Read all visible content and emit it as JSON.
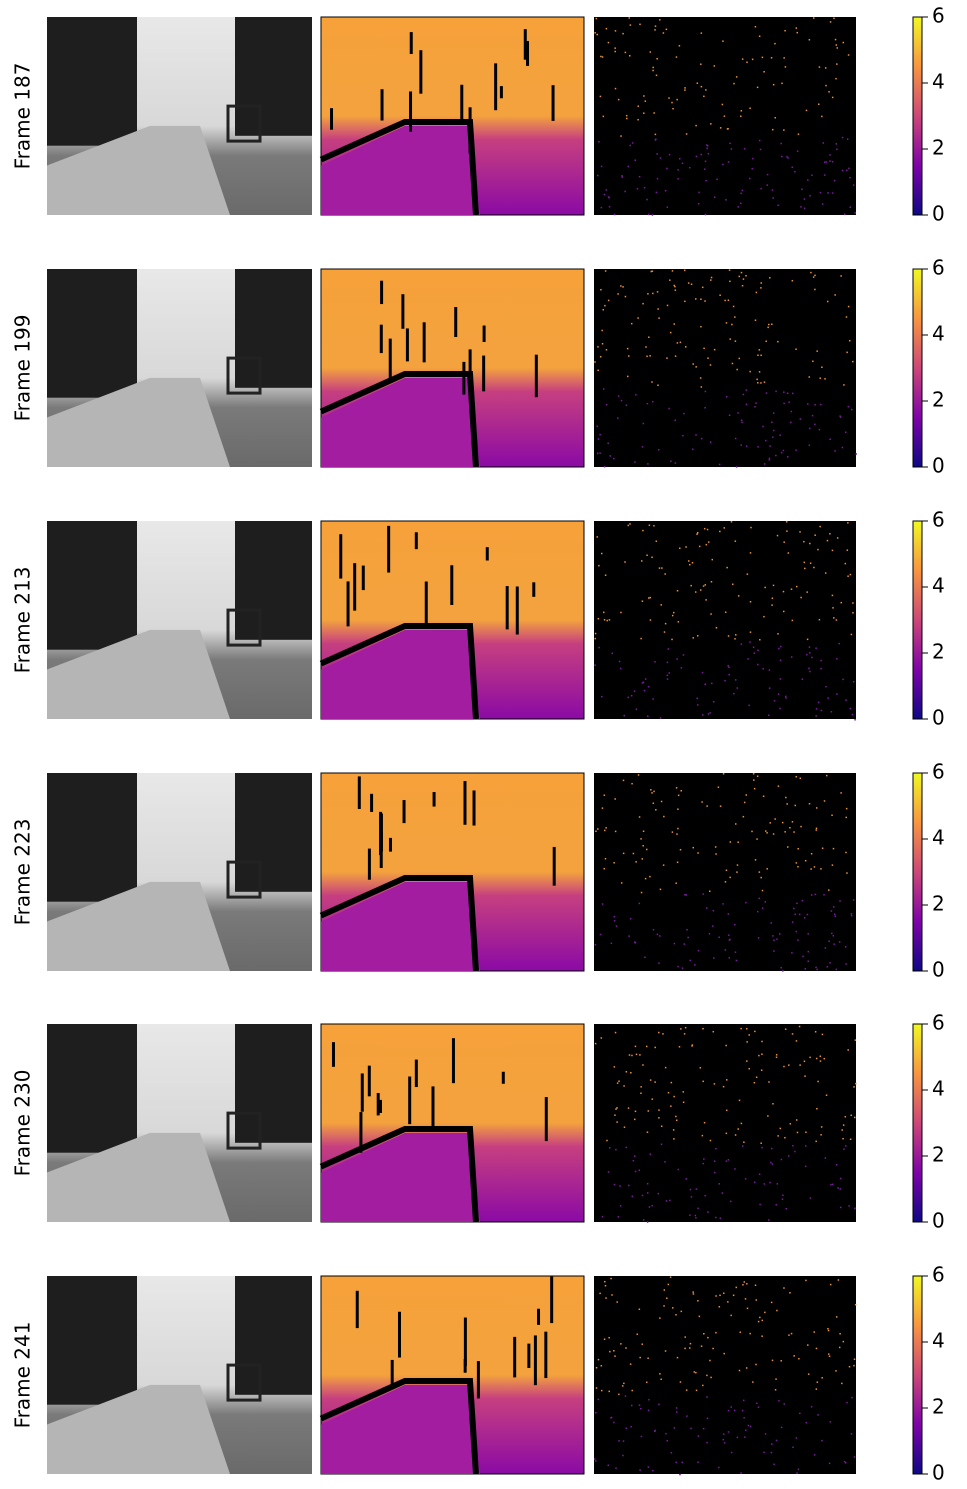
{
  "rows": [
    {
      "label": "Frame 187"
    },
    {
      "label": "Frame 199"
    },
    {
      "label": "Frame 213"
    },
    {
      "label": "Frame 223"
    },
    {
      "label": "Frame 230"
    },
    {
      "label": "Frame 241"
    }
  ],
  "colorbar": {
    "lim": [
      0,
      6
    ],
    "ticks": [
      0,
      2,
      4,
      6
    ],
    "colormap": [
      "#0d0887",
      "#7e03a8",
      "#cc4778",
      "#f89540",
      "#f0f921"
    ]
  }
}
